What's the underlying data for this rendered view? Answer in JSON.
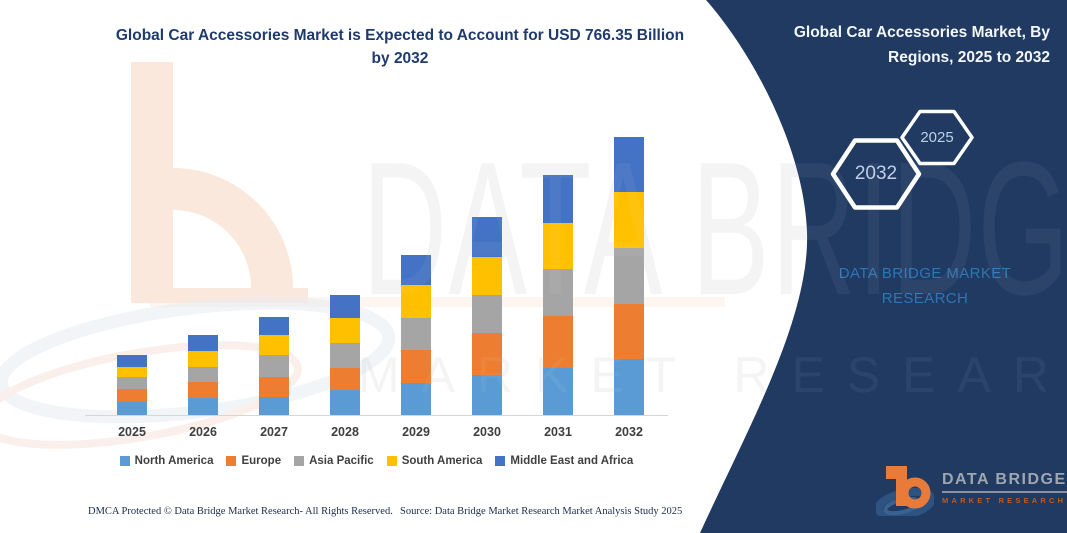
{
  "header": {
    "title": "Global Car Accessories Market is Expected to Account for USD 766.35 Billion by 2032"
  },
  "panel": {
    "title": "Global Car Accessories Market, By Regions, 2025 to 2032",
    "hexagons": [
      {
        "label": "2032"
      },
      {
        "label": "2025"
      }
    ],
    "brand_text": "DATA BRIDGE MARKET RESEARCH",
    "background_color": "#203a61"
  },
  "watermark": {
    "line1": "DATA BRIDGE",
    "line2": "MARKET RESEARCH"
  },
  "chart_data": {
    "type": "bar",
    "stacked": true,
    "title": "Global Car Accessories Market is Expected to Account for USD 766.35 Billion by 2032",
    "unit": "USD Billion (estimated from bar heights; 2032 total anchored to 766.35)",
    "categories": [
      "2025",
      "2026",
      "2027",
      "2028",
      "2029",
      "2030",
      "2031",
      "2032"
    ],
    "series": [
      {
        "name": "North America",
        "color": "#5B9BD5",
        "values": [
          36,
          47,
          50,
          69,
          88,
          110,
          130,
          154
        ]
      },
      {
        "name": "Europe",
        "color": "#ED7D31",
        "values": [
          36,
          44,
          55,
          61,
          91,
          116,
          143,
          152
        ]
      },
      {
        "name": "Asia Pacific",
        "color": "#A5A5A5",
        "values": [
          33,
          41,
          61,
          69,
          88,
          105,
          130,
          154
        ]
      },
      {
        "name": "South America",
        "color": "#FFC000",
        "values": [
          28,
          44,
          55,
          69,
          91,
          105,
          127,
          154
        ]
      },
      {
        "name": "Middle East and Africa",
        "color": "#4472C4",
        "values": [
          33,
          44,
          50,
          63,
          83,
          110,
          132,
          152.35
        ]
      }
    ],
    "totals": [
      166,
      220,
      271,
      331,
      441,
      546,
      662,
      766.35
    ],
    "ylim": [
      0,
      800
    ],
    "y_axis_labels_visible": false,
    "gridlines": false,
    "legend_position": "bottom"
  },
  "footer": {
    "left": "DMCA Protected © Data Bridge Market Research-  All Rights Reserved.",
    "right": "Source: Data Bridge Market Research  Market Analysis Study 2025"
  },
  "corner_logo": {
    "brand": "DATA BRIDGE",
    "sub": "MARKET RESEARCH"
  }
}
